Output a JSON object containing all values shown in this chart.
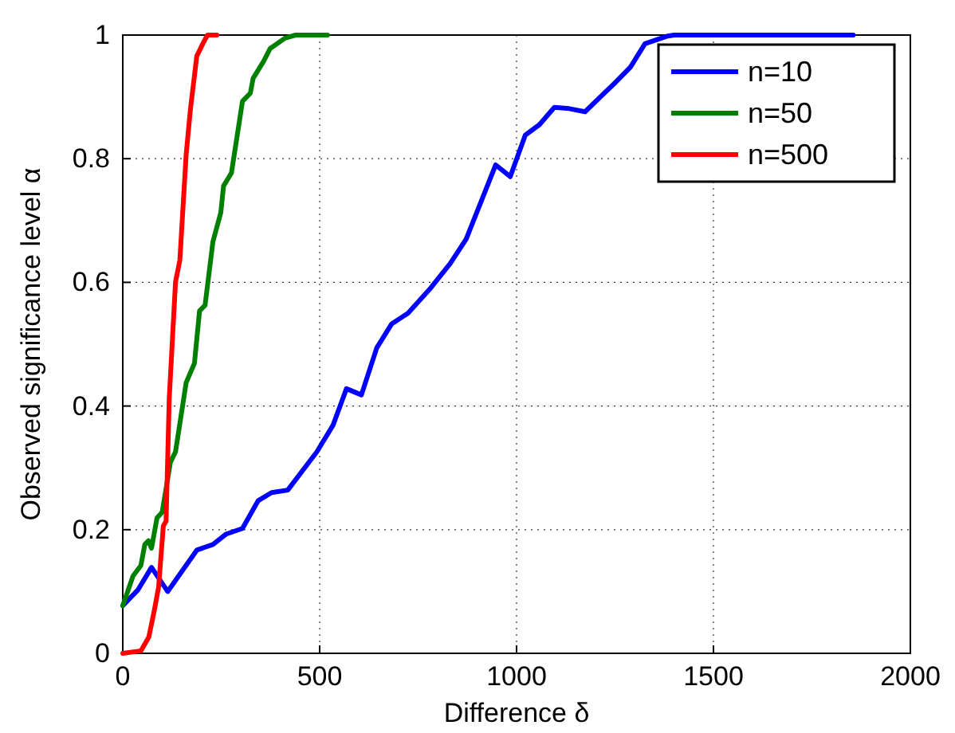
{
  "chart_data": {
    "type": "line",
    "xlabel": "Difference δ",
    "ylabel": "Observed significance level α",
    "xlim": [
      0,
      2000
    ],
    "ylim": [
      0,
      1
    ],
    "xticks": [
      0,
      500,
      1000,
      1500,
      2000
    ],
    "yticks": [
      0,
      0.2,
      0.4,
      0.6,
      0.8,
      1
    ],
    "grid": true,
    "legend": "top right",
    "line_style": "solid",
    "marker": "none",
    "series": [
      {
        "name": "n=10",
        "color": "#0000ff",
        "x": [
          0,
          39,
          73,
          114,
          188,
          229,
          263,
          304,
          344,
          378,
          419,
          493,
          534,
          568,
          606,
          645,
          683,
          724,
          782,
          832,
          872,
          947,
          984,
          1022,
          1058,
          1096,
          1134,
          1174,
          1252,
          1289,
          1326,
          1381,
          1400,
          1855
        ],
        "values": [
          0.077,
          0.103,
          0.139,
          0.1,
          0.167,
          0.176,
          0.193,
          0.202,
          0.247,
          0.26,
          0.264,
          0.326,
          0.369,
          0.428,
          0.418,
          0.494,
          0.533,
          0.55,
          0.591,
          0.631,
          0.67,
          0.79,
          0.771,
          0.838,
          0.855,
          0.883,
          0.881,
          0.876,
          0.924,
          0.948,
          0.986,
          0.998,
          1,
          1
        ]
      },
      {
        "name": "n=50",
        "color": "#008000",
        "x": [
          0,
          26,
          46,
          56,
          65,
          73,
          87,
          100,
          121,
          134,
          161,
          182,
          195,
          209,
          229,
          249,
          256,
          276,
          304,
          324,
          331,
          358,
          374,
          412,
          439,
          520
        ],
        "values": [
          0.077,
          0.125,
          0.142,
          0.176,
          0.182,
          0.17,
          0.219,
          0.228,
          0.309,
          0.326,
          0.438,
          0.469,
          0.554,
          0.563,
          0.666,
          0.713,
          0.756,
          0.777,
          0.893,
          0.906,
          0.93,
          0.958,
          0.978,
          0.995,
          1,
          1
        ]
      },
      {
        "name": "n=500",
        "color": "#ff0000",
        "x": [
          0,
          46,
          66,
          80,
          91,
          103,
          110,
          118,
          134,
          145,
          161,
          172,
          188,
          204,
          215,
          239
        ],
        "values": [
          0,
          0.004,
          0.026,
          0.069,
          0.107,
          0.206,
          0.214,
          0.412,
          0.601,
          0.636,
          0.807,
          0.881,
          0.966,
          0.987,
          1,
          1
        ]
      }
    ]
  }
}
